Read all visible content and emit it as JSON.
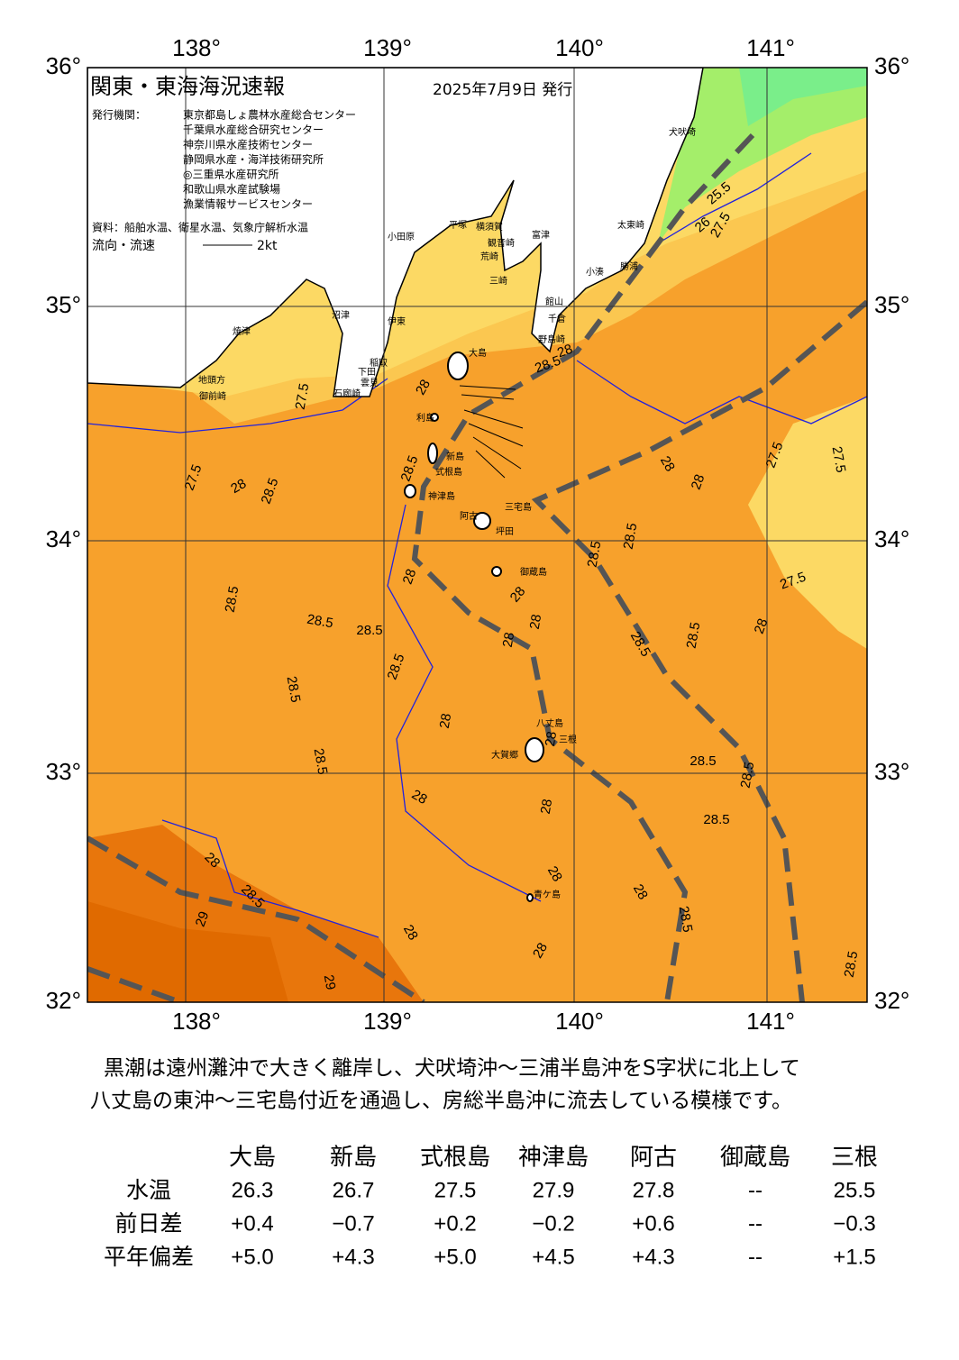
{
  "header": {
    "title": "関東・東海海況速報",
    "issued": "2025年7月9日 発行",
    "issuer_label": "発行機関：",
    "issuers": [
      "東京都島しょ農林水産総合センター",
      "千葉県水産総合研究センター",
      "神奈川県水産技術センター",
      "静岡県水産・海洋技術研究所",
      "◎三重県水産研究所",
      "和歌山県水産試験場",
      "漁業情報サービスセンター"
    ],
    "source": "資料：船舶水温、衛星水温、気象庁解析水温",
    "flow_label": "流向・流速",
    "flow_scale": "2kt"
  },
  "map": {
    "lon_labels": [
      "138°",
      "139°",
      "140°",
      "141°"
    ],
    "lat_labels": [
      "36°",
      "35°",
      "34°",
      "33°",
      "32°"
    ],
    "places": [
      "犬吠埼",
      "太東崎",
      "勝浦",
      "小湊",
      "館山",
      "千倉",
      "野島崎",
      "富津",
      "横須賀",
      "観音崎",
      "荒崎",
      "三崎",
      "平塚",
      "小田原",
      "沼津",
      "伊東",
      "稲取",
      "下田",
      "雲見",
      "石廊崎",
      "焼津",
      "地頭方",
      "御前崎",
      "大島",
      "利島",
      "新島",
      "式根島",
      "神津島",
      "三宅島",
      "阿古",
      "坪田",
      "御蔵島",
      "八丈島",
      "三根",
      "大賀郷",
      "青ケ島"
    ],
    "contour_labels": [
      "27.5",
      "27.5",
      "28",
      "28.5",
      "28",
      "28.5",
      "28",
      "28.5",
      "28.5",
      "28.5",
      "28.5",
      "28.5",
      "28.5",
      "28",
      "28",
      "28",
      "28.5",
      "29",
      "28",
      "29",
      "28",
      "28",
      "28",
      "28",
      "28.5",
      "28.5",
      "28.5",
      "28.5",
      "28.5",
      "28.5",
      "28.5",
      "28",
      "28.5",
      "28.5",
      "27.5",
      "28",
      "28",
      "27.5",
      "27.5",
      "28",
      "28",
      "28",
      "28.5",
      "28",
      "25.5",
      "26",
      "27.5",
      "28"
    ]
  },
  "note": [
    "黒潮は遠州灘沖で大きく離岸し、犬吠埼沖～三浦半島沖をS字状に北上して",
    "八丈島の東沖～三宅島付近を通過し、房総半島沖に流去している模様です。"
  ],
  "table": {
    "columns": [
      "大島",
      "新島",
      "式根島",
      "神津島",
      "阿古",
      "御蔵島",
      "三根"
    ],
    "rows": [
      {
        "label": "水温",
        "cells": [
          "26.3",
          "26.7",
          "27.5",
          "27.9",
          "27.8",
          "--",
          "25.5"
        ]
      },
      {
        "label": "前日差",
        "cells": [
          "+0.4",
          "−0.7",
          "+0.2",
          "−0.2",
          "+0.6",
          "--",
          "−0.3"
        ]
      },
      {
        "label": "平年偏差",
        "cells": [
          "+5.0",
          "+4.3",
          "+5.0",
          "+4.5",
          "+4.3",
          "--",
          "+1.5"
        ]
      }
    ]
  }
}
